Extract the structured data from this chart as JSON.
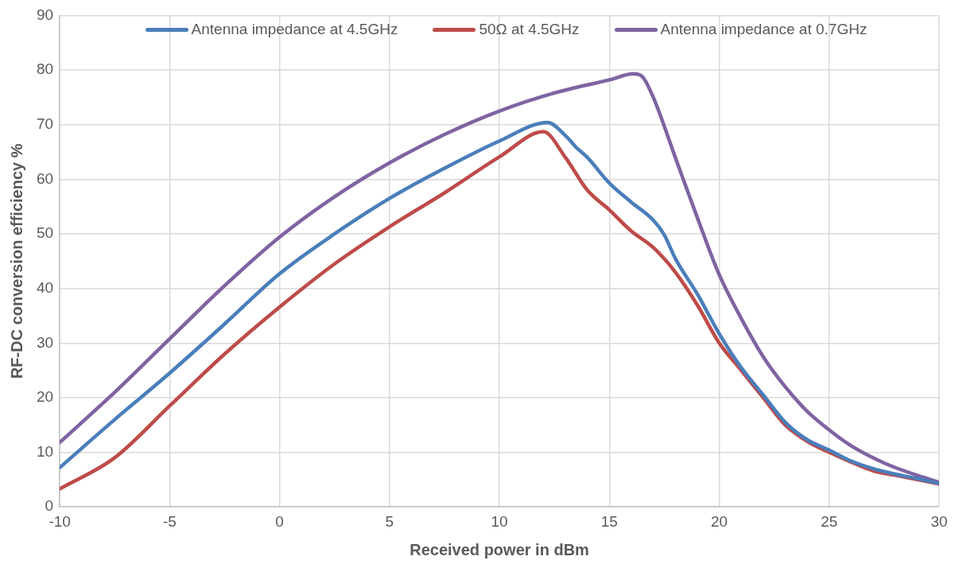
{
  "chart_data": {
    "type": "line",
    "xlabel": "Received power in dBm",
    "ylabel": "RF-DC conversion efficiency %",
    "xlim": [
      -10,
      30
    ],
    "xticks": [
      -10,
      -5,
      0,
      5,
      10,
      15,
      20,
      25,
      30
    ],
    "ylim": [
      0,
      90
    ],
    "yticks": [
      0,
      10,
      20,
      30,
      40,
      50,
      60,
      70,
      80,
      90
    ],
    "grid": true,
    "legend": "top",
    "marker": "none",
    "line_style": "solid",
    "series": [
      {
        "name": "Antenna impedance at 4.5GHz",
        "color": "#4a7ebb",
        "x": [
          -10,
          -7.5,
          -5,
          -2.5,
          0,
          2.5,
          5,
          7.5,
          10,
          12.2,
          13,
          13.5,
          14,
          15,
          16,
          17,
          17.5,
          18,
          19,
          20,
          21,
          22,
          23,
          24,
          25,
          26,
          27,
          28,
          29,
          30
        ],
        "values": [
          7.2,
          16,
          24.5,
          33.5,
          42.7,
          50,
          56.5,
          62,
          67,
          70.4,
          68,
          65.8,
          64,
          59.3,
          55.8,
          52.5,
          49.8,
          45.5,
          39,
          31.7,
          25.5,
          20.5,
          15.5,
          12.3,
          10.4,
          8.4,
          7,
          6,
          5.2,
          4.3
        ]
      },
      {
        "name": "50Ω at 4.5GHz",
        "color": "#be4b48",
        "x": [
          -10,
          -7.5,
          -5,
          -2.5,
          0,
          2.5,
          5,
          7.5,
          10,
          12,
          13,
          14,
          15,
          16,
          17,
          18,
          19,
          20,
          21,
          22,
          23,
          24,
          25,
          26,
          27,
          28,
          29,
          30
        ],
        "values": [
          3.3,
          9,
          18.5,
          28,
          36.6,
          44.5,
          51.3,
          57.5,
          64.1,
          68.7,
          64,
          58,
          54.4,
          50.5,
          47.5,
          43,
          37,
          30,
          25,
          20,
          15,
          12,
          10,
          8.2,
          6.6,
          5.8,
          5,
          4.2
        ]
      },
      {
        "name": "Antenna impedance at 0.7GHz",
        "color": "#7f63a2",
        "x": [
          -10,
          -7.5,
          -5,
          -2.5,
          0,
          2.5,
          5,
          7.5,
          10,
          12.5,
          15,
          16.1,
          16.5,
          17,
          18,
          19,
          20,
          21,
          22,
          23,
          24,
          25,
          26,
          27,
          28,
          29,
          30
        ],
        "values": [
          11.8,
          21,
          30.8,
          40.5,
          49.4,
          56.8,
          63,
          68.2,
          72.5,
          75.8,
          78.2,
          79.3,
          78.8,
          75,
          64,
          53,
          42.5,
          34.5,
          27.5,
          22,
          17.5,
          14.1,
          11.2,
          9,
          7.2,
          5.8,
          4.5
        ]
      }
    ]
  }
}
